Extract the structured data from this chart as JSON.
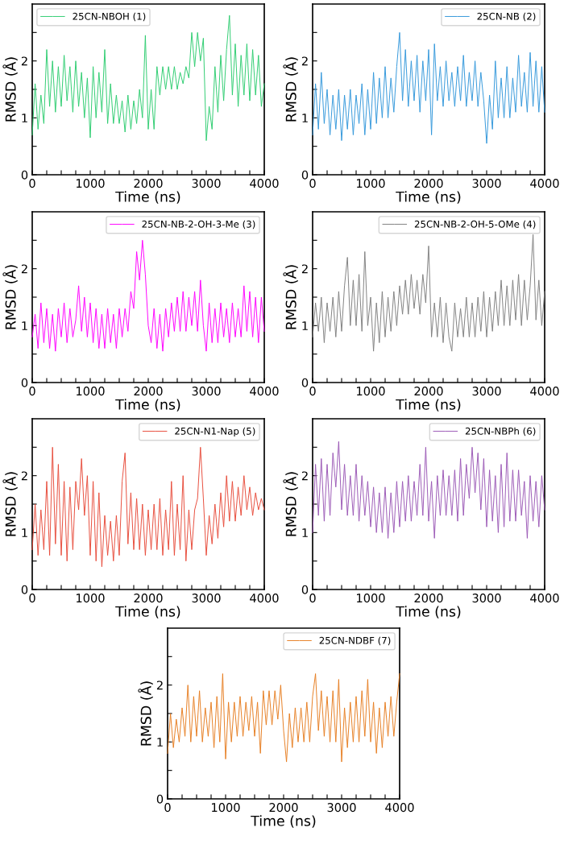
{
  "chart_data": [
    {
      "type": "line",
      "xlabel": "Time (ns)",
      "ylabel": "RMSD (Å)",
      "legend": "top left",
      "grid": false,
      "xlim": [
        0,
        4000
      ],
      "ylim": [
        0,
        3
      ],
      "xticks": [
        0,
        {
          "value": 250,
          "label": null
        },
        {
          "value": 500,
          "label": null
        },
        {
          "value": 750,
          "label": null
        },
        1000,
        {
          "value": 1250,
          "label": null
        },
        {
          "value": 1500,
          "label": null
        },
        {
          "value": 1750,
          "label": null
        },
        2000,
        {
          "value": 2250,
          "label": null
        },
        {
          "value": 2500,
          "label": null
        },
        {
          "value": 2750,
          "label": null
        },
        3000,
        {
          "value": 3250,
          "label": null
        },
        {
          "value": 3500,
          "label": null
        },
        {
          "value": 3750,
          "label": null
        },
        4000
      ],
      "yticks": [
        0,
        {
          "value": 0.5,
          "label": null
        },
        1,
        {
          "value": 1.5,
          "label": null
        },
        2,
        {
          "value": 2.5,
          "label": null
        }
      ],
      "x": [
        0,
        50,
        100,
        150,
        200,
        250,
        300,
        350,
        400,
        450,
        500,
        550,
        600,
        650,
        700,
        750,
        800,
        850,
        900,
        950,
        1000,
        1050,
        1100,
        1150,
        1200,
        1250,
        1300,
        1350,
        1400,
        1450,
        1500,
        1550,
        1600,
        1650,
        1700,
        1750,
        1800,
        1850,
        1900,
        1950,
        2000,
        2050,
        2100,
        2150,
        2200,
        2250,
        2300,
        2350,
        2400,
        2450,
        2500,
        2550,
        2600,
        2650,
        2700,
        2750,
        2800,
        2850,
        2900,
        2950,
        3000,
        3050,
        3100,
        3150,
        3200,
        3250,
        3300,
        3350,
        3400,
        3450,
        3500,
        3550,
        3600,
        3650,
        3700,
        3750,
        3800,
        3850,
        3900,
        3950,
        4000
      ],
      "series": [
        {
          "name": "25CN-NBOH (1)",
          "color": "#2ecc71",
          "values": [
            0.7,
            1.6,
            0.8,
            1.4,
            0.9,
            2.2,
            1.2,
            2.0,
            1.1,
            1.9,
            1.2,
            2.1,
            1.3,
            1.9,
            1.1,
            2.0,
            1.2,
            1.8,
            1.0,
            1.7,
            0.65,
            1.9,
            1.0,
            1.8,
            1.1,
            2.2,
            0.9,
            1.6,
            0.9,
            1.4,
            0.9,
            1.3,
            0.75,
            1.4,
            0.8,
            1.3,
            0.9,
            1.5,
            1.0,
            2.45,
            0.8,
            1.5,
            0.8,
            1.9,
            1.4,
            1.9,
            1.5,
            1.9,
            1.5,
            1.9,
            1.5,
            1.8,
            1.6,
            1.9,
            1.7,
            2.5,
            1.9,
            2.5,
            2.0,
            2.4,
            0.6,
            1.2,
            0.8,
            1.9,
            1.1,
            2.1,
            1.3,
            2.2,
            2.8,
            1.4,
            2.3,
            1.2,
            2.1,
            1.4,
            2.3,
            1.3,
            2.2,
            1.4,
            2.1,
            1.2,
            1.6
          ]
        }
      ]
    },
    {
      "type": "line",
      "xlabel": "Time (ns)",
      "ylabel": "RMSD (Å)",
      "legend": "top right",
      "grid": false,
      "xlim": [
        0,
        4000
      ],
      "ylim": [
        0,
        3
      ],
      "xticks": [
        0,
        {
          "value": 250,
          "label": null
        },
        {
          "value": 500,
          "label": null
        },
        {
          "value": 750,
          "label": null
        },
        1000,
        {
          "value": 1250,
          "label": null
        },
        {
          "value": 1500,
          "label": null
        },
        {
          "value": 1750,
          "label": null
        },
        2000,
        {
          "value": 2250,
          "label": null
        },
        {
          "value": 2500,
          "label": null
        },
        {
          "value": 2750,
          "label": null
        },
        3000,
        {
          "value": 3250,
          "label": null
        },
        {
          "value": 3500,
          "label": null
        },
        {
          "value": 3750,
          "label": null
        },
        4000
      ],
      "yticks": [
        0,
        {
          "value": 0.5,
          "label": null
        },
        1,
        {
          "value": 1.5,
          "label": null
        },
        2,
        {
          "value": 2.5,
          "label": null
        }
      ],
      "x": [
        0,
        50,
        100,
        150,
        200,
        250,
        300,
        350,
        400,
        450,
        500,
        550,
        600,
        650,
        700,
        750,
        800,
        850,
        900,
        950,
        1000,
        1050,
        1100,
        1150,
        1200,
        1250,
        1300,
        1350,
        1400,
        1450,
        1500,
        1550,
        1600,
        1650,
        1700,
        1750,
        1800,
        1850,
        1900,
        1950,
        2000,
        2050,
        2100,
        2150,
        2200,
        2250,
        2300,
        2350,
        2400,
        2450,
        2500,
        2550,
        2600,
        2650,
        2700,
        2750,
        2800,
        2850,
        2900,
        2950,
        3000,
        3050,
        3100,
        3150,
        3200,
        3250,
        3300,
        3350,
        3400,
        3450,
        3500,
        3550,
        3600,
        3650,
        3700,
        3750,
        3800,
        3850,
        3900,
        3950,
        4000
      ],
      "series": [
        {
          "name": "25CN-NB (2)",
          "color": "#3498db",
          "values": [
            0.7,
            1.6,
            0.8,
            1.8,
            0.9,
            1.5,
            0.7,
            1.4,
            0.8,
            1.5,
            0.6,
            1.4,
            0.8,
            1.5,
            0.7,
            1.4,
            0.9,
            1.6,
            0.7,
            1.5,
            0.8,
            1.8,
            0.9,
            1.7,
            1.0,
            1.9,
            1.0,
            1.7,
            1.1,
            1.9,
            2.5,
            1.3,
            2.2,
            1.2,
            2.0,
            1.3,
            2.1,
            1.1,
            2.0,
            1.3,
            2.2,
            0.7,
            2.3,
            1.3,
            1.9,
            1.2,
            2.0,
            1.3,
            1.8,
            1.2,
            1.9,
            1.3,
            2.1,
            1.2,
            1.8,
            1.3,
            2.0,
            1.2,
            1.8,
            1.3,
            0.55,
            1.4,
            0.8,
            2.0,
            1.0,
            1.7,
            1.0,
            1.9,
            1.0,
            1.7,
            1.1,
            2.1,
            1.2,
            1.8,
            1.1,
            2.15,
            1.2,
            2.0,
            1.1,
            1.9,
            1.1
          ]
        }
      ]
    },
    {
      "type": "line",
      "xlabel": "Time (ns)",
      "ylabel": "RMSD (Å)",
      "legend": "top right",
      "grid": false,
      "xlim": [
        0,
        4000
      ],
      "ylim": [
        0,
        3
      ],
      "xticks": [
        0,
        {
          "value": 250,
          "label": null
        },
        {
          "value": 500,
          "label": null
        },
        {
          "value": 750,
          "label": null
        },
        1000,
        {
          "value": 1250,
          "label": null
        },
        {
          "value": 1500,
          "label": null
        },
        {
          "value": 1750,
          "label": null
        },
        2000,
        {
          "value": 2250,
          "label": null
        },
        {
          "value": 2500,
          "label": null
        },
        {
          "value": 2750,
          "label": null
        },
        3000,
        {
          "value": 3250,
          "label": null
        },
        {
          "value": 3500,
          "label": null
        },
        {
          "value": 3750,
          "label": null
        },
        4000
      ],
      "yticks": [
        0,
        {
          "value": 0.5,
          "label": null
        },
        1,
        {
          "value": 1.5,
          "label": null
        },
        2,
        {
          "value": 2.5,
          "label": null
        }
      ],
      "x": [
        0,
        50,
        100,
        150,
        200,
        250,
        300,
        350,
        400,
        450,
        500,
        550,
        600,
        650,
        700,
        750,
        800,
        850,
        900,
        950,
        1000,
        1050,
        1100,
        1150,
        1200,
        1250,
        1300,
        1350,
        1400,
        1450,
        1500,
        1550,
        1600,
        1650,
        1700,
        1750,
        1800,
        1850,
        1900,
        1950,
        2000,
        2050,
        2100,
        2150,
        2200,
        2250,
        2300,
        2350,
        2400,
        2450,
        2500,
        2550,
        2600,
        2650,
        2700,
        2750,
        2800,
        2850,
        2900,
        2950,
        3000,
        3050,
        3100,
        3150,
        3200,
        3250,
        3300,
        3350,
        3400,
        3450,
        3500,
        3550,
        3600,
        3650,
        3700,
        3750,
        3800,
        3850,
        3900,
        3950,
        4000
      ],
      "series": [
        {
          "name": "25CN-NB-2-OH-3-Me (3)",
          "color": "#ff00ff",
          "values": [
            0.8,
            1.2,
            0.6,
            1.4,
            0.7,
            1.3,
            0.6,
            1.2,
            0.55,
            1.3,
            0.8,
            1.4,
            0.7,
            1.3,
            0.8,
            1.1,
            1.7,
            0.9,
            1.5,
            0.8,
            1.4,
            0.7,
            1.3,
            0.6,
            1.2,
            0.6,
            1.3,
            0.7,
            1.2,
            0.6,
            1.3,
            0.8,
            1.3,
            0.9,
            1.6,
            1.3,
            2.3,
            1.8,
            2.5,
            1.9,
            1.0,
            0.7,
            1.3,
            0.6,
            1.2,
            0.55,
            1.3,
            0.8,
            1.4,
            0.9,
            1.5,
            0.9,
            1.6,
            0.9,
            1.5,
            1.0,
            1.6,
            0.9,
            1.8,
            1.0,
            0.55,
            1.4,
            0.7,
            1.3,
            0.7,
            1.4,
            0.8,
            1.3,
            0.7,
            1.4,
            0.8,
            1.3,
            0.8,
            1.7,
            0.9,
            1.6,
            0.8,
            1.5,
            0.7,
            1.5,
            0.9
          ]
        }
      ]
    },
    {
      "type": "line",
      "xlabel": "Time (ns)",
      "ylabel": "RMSD (Å)",
      "legend": "top right",
      "grid": false,
      "xlim": [
        0,
        4000
      ],
      "ylim": [
        0,
        3
      ],
      "xticks": [
        0,
        {
          "value": 250,
          "label": null
        },
        {
          "value": 500,
          "label": null
        },
        {
          "value": 750,
          "label": null
        },
        1000,
        {
          "value": 1250,
          "label": null
        },
        {
          "value": 1500,
          "label": null
        },
        {
          "value": 1750,
          "label": null
        },
        2000,
        {
          "value": 2250,
          "label": null
        },
        {
          "value": 2500,
          "label": null
        },
        {
          "value": 2750,
          "label": null
        },
        3000,
        {
          "value": 3250,
          "label": null
        },
        {
          "value": 3500,
          "label": null
        },
        {
          "value": 3750,
          "label": null
        },
        4000
      ],
      "yticks": [
        0,
        {
          "value": 0.5,
          "label": null
        },
        1,
        {
          "value": 1.5,
          "label": null
        },
        2,
        {
          "value": 2.5,
          "label": null
        }
      ],
      "x": [
        0,
        50,
        100,
        150,
        200,
        250,
        300,
        350,
        400,
        450,
        500,
        550,
        600,
        650,
        700,
        750,
        800,
        850,
        900,
        950,
        1000,
        1050,
        1100,
        1150,
        1200,
        1250,
        1300,
        1350,
        1400,
        1450,
        1500,
        1550,
        1600,
        1650,
        1700,
        1750,
        1800,
        1850,
        1900,
        1950,
        2000,
        2050,
        2100,
        2150,
        2200,
        2250,
        2300,
        2350,
        2400,
        2450,
        2500,
        2550,
        2600,
        2650,
        2700,
        2750,
        2800,
        2850,
        2900,
        2950,
        3000,
        3050,
        3100,
        3150,
        3200,
        3250,
        3300,
        3350,
        3400,
        3450,
        3500,
        3550,
        3600,
        3650,
        3700,
        3750,
        3800,
        3850,
        3900,
        3950,
        4000
      ],
      "series": [
        {
          "name": "25CN-NB-2-OH-5-OMe (4)",
          "color": "#808080",
          "values": [
            0.8,
            1.4,
            0.9,
            1.5,
            0.7,
            1.4,
            0.9,
            1.5,
            0.8,
            1.6,
            0.9,
            1.7,
            2.2,
            1.0,
            1.8,
            1.0,
            1.9,
            0.9,
            2.3,
            1.0,
            1.5,
            0.55,
            1.4,
            0.7,
            1.6,
            0.8,
            1.5,
            0.9,
            1.6,
            1.0,
            1.7,
            1.2,
            1.8,
            1.2,
            1.9,
            1.3,
            1.8,
            1.2,
            1.9,
            1.4,
            2.4,
            0.8,
            1.4,
            0.8,
            1.5,
            0.7,
            1.4,
            0.8,
            0.55,
            1.4,
            0.8,
            1.3,
            0.8,
            1.5,
            0.8,
            1.4,
            0.8,
            1.5,
            0.9,
            1.6,
            0.8,
            1.5,
            0.9,
            1.6,
            1.0,
            1.8,
            1.0,
            1.7,
            1.0,
            1.8,
            1.1,
            1.9,
            1.0,
            1.8,
            1.1,
            1.7,
            2.6,
            1.1,
            1.8,
            1.0,
            1.6
          ]
        }
      ]
    },
    {
      "type": "line",
      "xlabel": "Time (ns)",
      "ylabel": "RMSD (Å)",
      "legend": "top right",
      "grid": false,
      "xlim": [
        0,
        4000
      ],
      "ylim": [
        0,
        3
      ],
      "xticks": [
        0,
        {
          "value": 250,
          "label": null
        },
        {
          "value": 500,
          "label": null
        },
        {
          "value": 750,
          "label": null
        },
        1000,
        {
          "value": 1250,
          "label": null
        },
        {
          "value": 1500,
          "label": null
        },
        {
          "value": 1750,
          "label": null
        },
        2000,
        {
          "value": 2250,
          "label": null
        },
        {
          "value": 2500,
          "label": null
        },
        {
          "value": 2750,
          "label": null
        },
        3000,
        {
          "value": 3250,
          "label": null
        },
        {
          "value": 3500,
          "label": null
        },
        {
          "value": 3750,
          "label": null
        },
        4000
      ],
      "yticks": [
        0,
        {
          "value": 0.5,
          "label": null
        },
        1,
        {
          "value": 1.5,
          "label": null
        },
        2,
        {
          "value": 2.5,
          "label": null
        }
      ],
      "x": [
        0,
        50,
        100,
        150,
        200,
        250,
        300,
        350,
        400,
        450,
        500,
        550,
        600,
        650,
        700,
        750,
        800,
        850,
        900,
        950,
        1000,
        1050,
        1100,
        1150,
        1200,
        1250,
        1300,
        1350,
        1400,
        1450,
        1500,
        1550,
        1600,
        1650,
        1700,
        1750,
        1800,
        1850,
        1900,
        1950,
        2000,
        2050,
        2100,
        2150,
        2200,
        2250,
        2300,
        2350,
        2400,
        2450,
        2500,
        2550,
        2600,
        2650,
        2700,
        2750,
        2800,
        2850,
        2900,
        2950,
        3000,
        3050,
        3100,
        3150,
        3200,
        3250,
        3300,
        3350,
        3400,
        3450,
        3500,
        3550,
        3600,
        3650,
        3700,
        3750,
        3800,
        3850,
        3900,
        3950,
        4000
      ],
      "series": [
        {
          "name": "25CN-N1-Nap (5)",
          "color": "#e74c3c",
          "values": [
            0.7,
            1.5,
            0.6,
            1.4,
            0.7,
            1.9,
            0.6,
            2.5,
            0.8,
            2.2,
            0.6,
            1.9,
            0.5,
            1.8,
            0.7,
            1.9,
            1.4,
            2.3,
            1.3,
            2.0,
            0.6,
            1.9,
            0.5,
            1.7,
            0.4,
            1.3,
            0.6,
            1.2,
            0.5,
            1.3,
            0.6,
            1.9,
            2.4,
            0.8,
            1.7,
            0.7,
            1.6,
            0.7,
            1.5,
            0.6,
            1.4,
            0.7,
            1.5,
            0.7,
            1.6,
            0.6,
            1.4,
            0.7,
            1.9,
            0.6,
            1.5,
            0.7,
            2.0,
            0.5,
            1.4,
            0.7,
            1.4,
            1.6,
            2.5,
            1.6,
            0.6,
            1.3,
            0.8,
            1.5,
            0.9,
            1.7,
            1.1,
            2.0,
            1.2,
            1.9,
            1.2,
            1.8,
            1.3,
            2.0,
            1.4,
            1.8,
            1.3,
            1.7,
            1.4,
            1.6,
            1.4
          ]
        }
      ]
    },
    {
      "type": "line",
      "xlabel": "Time (ns)",
      "ylabel": "RMSD (Å)",
      "legend": "top right",
      "grid": false,
      "xlim": [
        0,
        4000
      ],
      "ylim": [
        0,
        3
      ],
      "xticks": [
        0,
        {
          "value": 250,
          "label": null
        },
        {
          "value": 500,
          "label": null
        },
        {
          "value": 750,
          "label": null
        },
        1000,
        {
          "value": 1250,
          "label": null
        },
        {
          "value": 1500,
          "label": null
        },
        {
          "value": 1750,
          "label": null
        },
        2000,
        {
          "value": 2250,
          "label": null
        },
        {
          "value": 2500,
          "label": null
        },
        {
          "value": 2750,
          "label": null
        },
        3000,
        {
          "value": 3250,
          "label": null
        },
        {
          "value": 3500,
          "label": null
        },
        {
          "value": 3750,
          "label": null
        },
        4000
      ],
      "yticks": [
        0,
        {
          "value": 0.5,
          "label": null
        },
        1,
        {
          "value": 1.5,
          "label": null
        },
        2,
        {
          "value": 2.5,
          "label": null
        }
      ],
      "x": [
        0,
        50,
        100,
        150,
        200,
        250,
        300,
        350,
        400,
        450,
        500,
        550,
        600,
        650,
        700,
        750,
        800,
        850,
        900,
        950,
        1000,
        1050,
        1100,
        1150,
        1200,
        1250,
        1300,
        1350,
        1400,
        1450,
        1500,
        1550,
        1600,
        1650,
        1700,
        1750,
        1800,
        1850,
        1900,
        1950,
        2000,
        2050,
        2100,
        2150,
        2200,
        2250,
        2300,
        2350,
        2400,
        2450,
        2500,
        2550,
        2600,
        2650,
        2700,
        2750,
        2800,
        2850,
        2900,
        2950,
        3000,
        3050,
        3100,
        3150,
        3200,
        3250,
        3300,
        3350,
        3400,
        3450,
        3500,
        3550,
        3600,
        3650,
        3700,
        3750,
        3800,
        3850,
        3900,
        3950,
        4000
      ],
      "series": [
        {
          "name": "25CN-NBPh (6)",
          "color": "#9b59b6",
          "values": [
            1.0,
            2.2,
            1.3,
            2.3,
            1.2,
            2.2,
            1.3,
            2.4,
            1.8,
            2.6,
            1.4,
            2.2,
            1.3,
            2.0,
            1.3,
            2.2,
            1.2,
            2.0,
            1.3,
            1.9,
            1.1,
            1.8,
            1.0,
            1.7,
            1.0,
            1.8,
            0.9,
            1.7,
            1.0,
            1.9,
            1.1,
            1.9,
            1.2,
            2.0,
            1.2,
            1.9,
            1.3,
            2.2,
            1.3,
            2.5,
            1.2,
            1.9,
            0.9,
            2.0,
            1.3,
            2.1,
            1.3,
            2.0,
            1.3,
            2.1,
            1.2,
            2.3,
            1.3,
            2.2,
            1.6,
            2.5,
            1.7,
            2.4,
            1.4,
            2.3,
            1.1,
            2.1,
            1.2,
            2.0,
            1.0,
            2.2,
            1.1,
            2.4,
            1.2,
            2.1,
            1.2,
            2.1,
            1.3,
            1.9,
            0.9,
            2.0,
            1.2,
            1.9,
            1.1,
            2.0,
            1.4
          ]
        }
      ]
    },
    {
      "type": "line",
      "xlabel": "Time (ns)",
      "ylabel": "RMSD (Å)",
      "legend": "top right",
      "grid": false,
      "xlim": [
        0,
        4000
      ],
      "ylim": [
        0,
        3
      ],
      "xticks": [
        0,
        {
          "value": 250,
          "label": null
        },
        {
          "value": 500,
          "label": null
        },
        {
          "value": 750,
          "label": null
        },
        1000,
        {
          "value": 1250,
          "label": null
        },
        {
          "value": 1500,
          "label": null
        },
        {
          "value": 1750,
          "label": null
        },
        2000,
        {
          "value": 2250,
          "label": null
        },
        {
          "value": 2500,
          "label": null
        },
        {
          "value": 2750,
          "label": null
        },
        3000,
        {
          "value": 3250,
          "label": null
        },
        {
          "value": 3500,
          "label": null
        },
        {
          "value": 3750,
          "label": null
        },
        4000
      ],
      "yticks": [
        0,
        {
          "value": 0.5,
          "label": null
        },
        1,
        {
          "value": 1.5,
          "label": null
        },
        2,
        {
          "value": 2.5,
          "label": null
        }
      ],
      "x": [
        0,
        50,
        100,
        150,
        200,
        250,
        300,
        350,
        400,
        450,
        500,
        550,
        600,
        650,
        700,
        750,
        800,
        850,
        900,
        950,
        1000,
        1050,
        1100,
        1150,
        1200,
        1250,
        1300,
        1350,
        1400,
        1450,
        1500,
        1550,
        1600,
        1650,
        1700,
        1750,
        1800,
        1850,
        1900,
        1950,
        2000,
        2050,
        2100,
        2150,
        2200,
        2250,
        2300,
        2350,
        2400,
        2450,
        2500,
        2550,
        2600,
        2650,
        2700,
        2750,
        2800,
        2850,
        2900,
        2950,
        3000,
        3050,
        3100,
        3150,
        3200,
        3250,
        3300,
        3350,
        3400,
        3450,
        3500,
        3550,
        3600,
        3650,
        3700,
        3750,
        3800,
        3850,
        3900,
        3950,
        4000
      ],
      "series": [
        {
          "name": "25CN-NDBF (7)",
          "color": "#e67e22",
          "values": [
            0.8,
            1.5,
            0.9,
            1.4,
            1.0,
            1.6,
            1.1,
            2.0,
            1.0,
            1.8,
            1.1,
            1.9,
            1.0,
            1.6,
            1.1,
            1.7,
            0.9,
            1.8,
            1.0,
            2.2,
            0.7,
            1.7,
            1.0,
            1.7,
            1.1,
            1.8,
            1.1,
            1.7,
            1.2,
            1.8,
            1.1,
            1.7,
            0.8,
            1.9,
            1.3,
            1.9,
            1.3,
            1.9,
            1.4,
            2.0,
            1.2,
            0.65,
            1.5,
            0.9,
            1.6,
            1.0,
            1.6,
            1.0,
            1.7,
            1.0,
            1.8,
            2.2,
            1.2,
            1.9,
            1.1,
            1.8,
            1.0,
            1.9,
            1.0,
            2.1,
            0.65,
            1.6,
            0.9,
            1.7,
            1.0,
            1.8,
            1.0,
            1.9,
            1.1,
            2.1,
            1.0,
            1.7,
            0.8,
            1.6,
            0.9,
            1.7,
            1.1,
            1.8,
            1.1,
            1.7,
            2.2
          ]
        }
      ]
    }
  ]
}
